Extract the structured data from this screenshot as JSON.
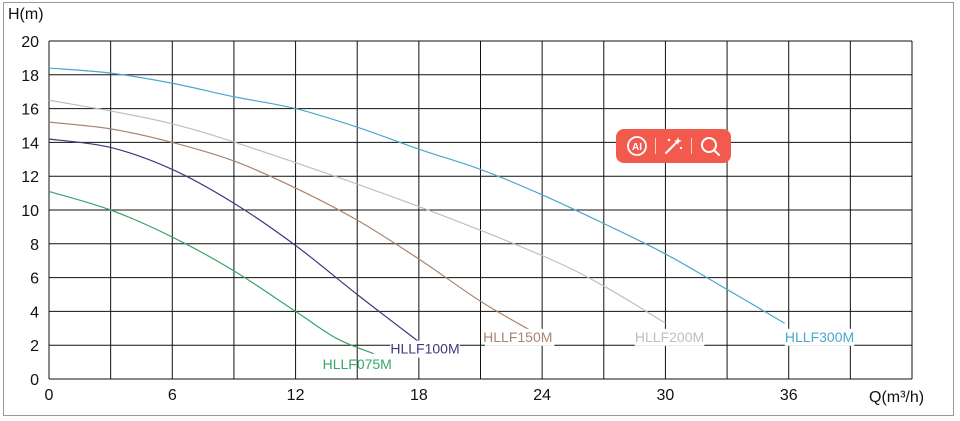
{
  "chart_data": {
    "type": "line",
    "xlabel": "Q(m³/h)",
    "ylabel": "H(m)",
    "xlim": [
      0,
      42
    ],
    "ylim": [
      0,
      20
    ],
    "x_ticks": [
      0,
      6,
      12,
      18,
      24,
      30,
      36
    ],
    "y_ticks": [
      0,
      2,
      4,
      6,
      8,
      10,
      12,
      14,
      16,
      18,
      20
    ],
    "grid": true,
    "series": [
      {
        "name": "HLLF075M",
        "color": "#3aa56b",
        "x": [
          0,
          3,
          6,
          9,
          12,
          14,
          15.8
        ],
        "y": [
          11.1,
          10.0,
          8.4,
          6.4,
          4.0,
          2.4,
          1.5
        ]
      },
      {
        "name": "HLLF100M",
        "color": "#3b3a7c",
        "x": [
          0,
          3,
          6,
          9,
          12,
          15,
          18
        ],
        "y": [
          14.2,
          13.7,
          12.4,
          10.4,
          7.9,
          5.0,
          2.2
        ]
      },
      {
        "name": "HLLF150M",
        "color": "#a88570",
        "x": [
          0,
          3,
          6,
          9,
          12,
          15,
          18,
          21,
          23.4
        ],
        "y": [
          15.2,
          14.8,
          14.0,
          12.9,
          11.3,
          9.4,
          7.1,
          4.6,
          2.9
        ]
      },
      {
        "name": "HLLF200M",
        "color": "#bfbfbf",
        "x": [
          0,
          6,
          12,
          18,
          24,
          27,
          30
        ],
        "y": [
          16.5,
          15.1,
          12.8,
          10.2,
          7.3,
          5.5,
          3.3
        ]
      },
      {
        "name": "HLLF300M",
        "color": "#4aa8cc",
        "x": [
          0,
          3,
          6,
          9,
          12,
          15,
          18,
          21,
          24,
          27,
          30,
          33,
          35.8
        ],
        "y": [
          18.4,
          18.1,
          17.5,
          16.7,
          16.0,
          14.9,
          13.6,
          12.4,
          10.9,
          9.2,
          7.4,
          5.3,
          3.3
        ]
      }
    ]
  },
  "overlay": {
    "icons": [
      "ai-icon",
      "magic-wand-icon",
      "search-icon"
    ],
    "color": "#f25a4d",
    "ai_text": "AI"
  }
}
